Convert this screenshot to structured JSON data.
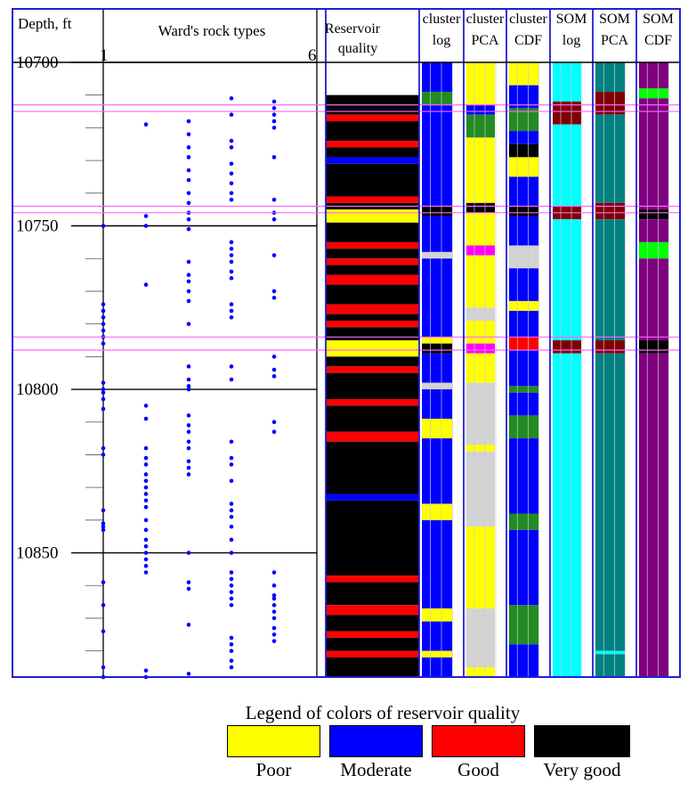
{
  "palette": {
    "poor": "#ffff00",
    "moderate": "#0000ff",
    "good": "#ff0000",
    "very_good": "#000000",
    "grey": "#d3d3d3",
    "cyan": "#00ffff",
    "teal": "#008080",
    "purple": "#800080",
    "maroon": "#800000",
    "green": "#228b22",
    "lime": "#00ff00",
    "magenta": "#ff00ff",
    "frame": "#2020d0",
    "marker_line": "#ff66ff",
    "dot": "#0000ff"
  },
  "chart_data": {
    "type": "well-log",
    "y_axis": {
      "title": "Depth, ft",
      "range": [
        10700,
        10888
      ],
      "ticks": [
        "10700",
        "10750",
        "10800",
        "10850"
      ],
      "tick_values": [
        10700,
        10750,
        10800,
        10850
      ]
    },
    "rock_types": {
      "title": "Ward's rock types",
      "range_min_label": "1",
      "range_max_label": "6",
      "x_range": [
        1,
        6
      ],
      "points": [
        {
          "type": 1,
          "depths": [
            10750,
            10774,
            10776,
            10778,
            10780,
            10782,
            10784,
            10786,
            10798,
            10800,
            10801,
            10803,
            10806,
            10818,
            10820,
            10837,
            10841,
            10842,
            10843,
            10859,
            10866,
            10874,
            10885,
            10888
          ]
        },
        {
          "type": 2,
          "depths": [
            10719,
            10747,
            10750,
            10768,
            10805,
            10809,
            10818,
            10821,
            10823,
            10826,
            10828,
            10830,
            10832,
            10834,
            10836,
            10840,
            10843,
            10846,
            10848,
            10850,
            10852,
            10854,
            10856,
            10886,
            10888
          ]
        },
        {
          "type": 3,
          "depths": [
            10718,
            10722,
            10726,
            10729,
            10733,
            10736,
            10740,
            10743,
            10746,
            10748,
            10751,
            10761,
            10765,
            10767,
            10770,
            10773,
            10780,
            10793,
            10797,
            10799,
            10800,
            10808,
            10811,
            10813,
            10816,
            10818,
            10822,
            10824,
            10826,
            10850,
            10859,
            10861,
            10872,
            10887
          ]
        },
        {
          "type": 4,
          "depths": [
            10711,
            10716,
            10724,
            10726,
            10731,
            10734,
            10737,
            10740,
            10742,
            10755,
            10757,
            10759,
            10761,
            10764,
            10766,
            10774,
            10776,
            10778,
            10793,
            10797,
            10816,
            10821,
            10823,
            10828,
            10835,
            10837,
            10839,
            10842,
            10846,
            10850,
            10856,
            10858,
            10860,
            10862,
            10864,
            10866,
            10876,
            10878,
            10880,
            10883,
            10885
          ]
        },
        {
          "type": 5,
          "depths": [
            10712,
            10714,
            10716,
            10718,
            10720,
            10729,
            10742,
            10746,
            10748,
            10759,
            10770,
            10772,
            10790,
            10794,
            10796,
            10810,
            10813,
            10856,
            10860,
            10863,
            10864,
            10866,
            10868,
            10870,
            10873,
            10875,
            10877
          ]
        }
      ]
    },
    "reservoir_quality": {
      "title": "Reservoir quality",
      "intervals": [
        {
          "top": 10710,
          "base": 10716,
          "class": "very_good"
        },
        {
          "top": 10716,
          "base": 10718,
          "class": "good"
        },
        {
          "top": 10718,
          "base": 10724,
          "class": "very_good"
        },
        {
          "top": 10724,
          "base": 10726,
          "class": "good"
        },
        {
          "top": 10726,
          "base": 10729,
          "class": "very_good"
        },
        {
          "top": 10729,
          "base": 10731,
          "class": "moderate"
        },
        {
          "top": 10731,
          "base": 10741,
          "class": "very_good"
        },
        {
          "top": 10741,
          "base": 10743,
          "class": "good"
        },
        {
          "top": 10743,
          "base": 10745,
          "class": "very_good"
        },
        {
          "top": 10745,
          "base": 10749,
          "class": "poor"
        },
        {
          "top": 10749,
          "base": 10755,
          "class": "very_good"
        },
        {
          "top": 10755,
          "base": 10757,
          "class": "good"
        },
        {
          "top": 10757,
          "base": 10760,
          "class": "very_good"
        },
        {
          "top": 10760,
          "base": 10762,
          "class": "good"
        },
        {
          "top": 10762,
          "base": 10765,
          "class": "very_good"
        },
        {
          "top": 10765,
          "base": 10768,
          "class": "good"
        },
        {
          "top": 10768,
          "base": 10774,
          "class": "very_good"
        },
        {
          "top": 10774,
          "base": 10777,
          "class": "good"
        },
        {
          "top": 10777,
          "base": 10779,
          "class": "very_good"
        },
        {
          "top": 10779,
          "base": 10781,
          "class": "good"
        },
        {
          "top": 10781,
          "base": 10785,
          "class": "very_good"
        },
        {
          "top": 10785,
          "base": 10790,
          "class": "poor"
        },
        {
          "top": 10790,
          "base": 10793,
          "class": "very_good"
        },
        {
          "top": 10793,
          "base": 10795,
          "class": "good"
        },
        {
          "top": 10795,
          "base": 10803,
          "class": "very_good"
        },
        {
          "top": 10803,
          "base": 10805,
          "class": "good"
        },
        {
          "top": 10805,
          "base": 10813,
          "class": "very_good"
        },
        {
          "top": 10813,
          "base": 10816,
          "class": "good"
        },
        {
          "top": 10816,
          "base": 10832,
          "class": "very_good"
        },
        {
          "top": 10832,
          "base": 10834,
          "class": "moderate"
        },
        {
          "top": 10834,
          "base": 10857,
          "class": "very_good"
        },
        {
          "top": 10857,
          "base": 10859,
          "class": "good"
        },
        {
          "top": 10859,
          "base": 10866,
          "class": "very_good"
        },
        {
          "top": 10866,
          "base": 10869,
          "class": "good"
        },
        {
          "top": 10869,
          "base": 10874,
          "class": "very_good"
        },
        {
          "top": 10874,
          "base": 10876,
          "class": "good"
        },
        {
          "top": 10876,
          "base": 10880,
          "class": "very_good"
        },
        {
          "top": 10880,
          "base": 10882,
          "class": "good"
        },
        {
          "top": 10882,
          "base": 10888,
          "class": "very_good"
        }
      ]
    },
    "class_tracks": [
      {
        "title_line1": "cluster",
        "title_line2": "log",
        "intervals": [
          {
            "top": 10700,
            "base": 10709,
            "class": "moderate"
          },
          {
            "top": 10709,
            "base": 10713,
            "class": "green"
          },
          {
            "top": 10713,
            "base": 10744,
            "class": "moderate"
          },
          {
            "top": 10744,
            "base": 10747,
            "class": "very_good"
          },
          {
            "top": 10747,
            "base": 10758,
            "class": "moderate"
          },
          {
            "top": 10758,
            "base": 10760,
            "class": "grey"
          },
          {
            "top": 10760,
            "base": 10784,
            "class": "moderate"
          },
          {
            "top": 10784,
            "base": 10786,
            "class": "poor"
          },
          {
            "top": 10786,
            "base": 10789,
            "class": "very_good"
          },
          {
            "top": 10789,
            "base": 10798,
            "class": "moderate"
          },
          {
            "top": 10798,
            "base": 10800,
            "class": "grey"
          },
          {
            "top": 10800,
            "base": 10809,
            "class": "moderate"
          },
          {
            "top": 10809,
            "base": 10815,
            "class": "poor"
          },
          {
            "top": 10815,
            "base": 10835,
            "class": "moderate"
          },
          {
            "top": 10835,
            "base": 10840,
            "class": "poor"
          },
          {
            "top": 10840,
            "base": 10867,
            "class": "moderate"
          },
          {
            "top": 10867,
            "base": 10871,
            "class": "poor"
          },
          {
            "top": 10871,
            "base": 10880,
            "class": "moderate"
          },
          {
            "top": 10880,
            "base": 10882,
            "class": "poor"
          },
          {
            "top": 10882,
            "base": 10888,
            "class": "moderate"
          }
        ]
      },
      {
        "title_line1": "cluster",
        "title_line2": "PCA",
        "intervals": [
          {
            "top": 10700,
            "base": 10713,
            "class": "poor"
          },
          {
            "top": 10713,
            "base": 10716,
            "class": "moderate"
          },
          {
            "top": 10716,
            "base": 10723,
            "class": "green"
          },
          {
            "top": 10723,
            "base": 10743,
            "class": "poor"
          },
          {
            "top": 10743,
            "base": 10746,
            "class": "very_good"
          },
          {
            "top": 10746,
            "base": 10756,
            "class": "poor"
          },
          {
            "top": 10756,
            "base": 10759,
            "class": "magenta"
          },
          {
            "top": 10759,
            "base": 10775,
            "class": "poor"
          },
          {
            "top": 10775,
            "base": 10779,
            "class": "grey"
          },
          {
            "top": 10779,
            "base": 10786,
            "class": "poor"
          },
          {
            "top": 10786,
            "base": 10789,
            "class": "magenta"
          },
          {
            "top": 10789,
            "base": 10798,
            "class": "poor"
          },
          {
            "top": 10798,
            "base": 10817,
            "class": "grey"
          },
          {
            "top": 10817,
            "base": 10819,
            "class": "poor"
          },
          {
            "top": 10819,
            "base": 10842,
            "class": "grey"
          },
          {
            "top": 10842,
            "base": 10867,
            "class": "poor"
          },
          {
            "top": 10867,
            "base": 10885,
            "class": "grey"
          },
          {
            "top": 10885,
            "base": 10888,
            "class": "poor"
          }
        ]
      },
      {
        "title_line1": "cluster",
        "title_line2": "CDF",
        "intervals": [
          {
            "top": 10700,
            "base": 10707,
            "class": "poor"
          },
          {
            "top": 10707,
            "base": 10714,
            "class": "moderate"
          },
          {
            "top": 10714,
            "base": 10721,
            "class": "green"
          },
          {
            "top": 10721,
            "base": 10725,
            "class": "moderate"
          },
          {
            "top": 10725,
            "base": 10729,
            "class": "very_good"
          },
          {
            "top": 10729,
            "base": 10735,
            "class": "poor"
          },
          {
            "top": 10735,
            "base": 10744,
            "class": "moderate"
          },
          {
            "top": 10744,
            "base": 10747,
            "class": "very_good"
          },
          {
            "top": 10747,
            "base": 10756,
            "class": "moderate"
          },
          {
            "top": 10756,
            "base": 10763,
            "class": "grey"
          },
          {
            "top": 10763,
            "base": 10773,
            "class": "moderate"
          },
          {
            "top": 10773,
            "base": 10776,
            "class": "poor"
          },
          {
            "top": 10776,
            "base": 10784,
            "class": "moderate"
          },
          {
            "top": 10784,
            "base": 10788,
            "class": "good"
          },
          {
            "top": 10788,
            "base": 10799,
            "class": "moderate"
          },
          {
            "top": 10799,
            "base": 10801,
            "class": "green"
          },
          {
            "top": 10801,
            "base": 10808,
            "class": "moderate"
          },
          {
            "top": 10808,
            "base": 10815,
            "class": "green"
          },
          {
            "top": 10815,
            "base": 10838,
            "class": "moderate"
          },
          {
            "top": 10838,
            "base": 10843,
            "class": "green"
          },
          {
            "top": 10843,
            "base": 10866,
            "class": "moderate"
          },
          {
            "top": 10866,
            "base": 10878,
            "class": "green"
          },
          {
            "top": 10878,
            "base": 10888,
            "class": "moderate"
          }
        ]
      },
      {
        "title_line1": "SOM",
        "title_line2": "log",
        "intervals": [
          {
            "top": 10700,
            "base": 10712,
            "class": "cyan"
          },
          {
            "top": 10712,
            "base": 10719,
            "class": "maroon"
          },
          {
            "top": 10719,
            "base": 10744,
            "class": "cyan"
          },
          {
            "top": 10744,
            "base": 10748,
            "class": "maroon"
          },
          {
            "top": 10748,
            "base": 10785,
            "class": "cyan"
          },
          {
            "top": 10785,
            "base": 10789,
            "class": "maroon"
          },
          {
            "top": 10789,
            "base": 10888,
            "class": "cyan"
          }
        ]
      },
      {
        "title_line1": "SOM",
        "title_line2": "PCA",
        "intervals": [
          {
            "top": 10700,
            "base": 10709,
            "class": "teal"
          },
          {
            "top": 10709,
            "base": 10716,
            "class": "maroon"
          },
          {
            "top": 10716,
            "base": 10743,
            "class": "teal"
          },
          {
            "top": 10743,
            "base": 10748,
            "class": "maroon"
          },
          {
            "top": 10748,
            "base": 10785,
            "class": "teal"
          },
          {
            "top": 10785,
            "base": 10789,
            "class": "maroon"
          },
          {
            "top": 10789,
            "base": 10880,
            "class": "teal"
          },
          {
            "top": 10880,
            "base": 10881,
            "class": "cyan"
          },
          {
            "top": 10881,
            "base": 10888,
            "class": "teal"
          }
        ]
      },
      {
        "title_line1": "SOM",
        "title_line2": "CDF",
        "intervals": [
          {
            "top": 10700,
            "base": 10708,
            "class": "purple"
          },
          {
            "top": 10708,
            "base": 10711,
            "class": "lime"
          },
          {
            "top": 10711,
            "base": 10745,
            "class": "purple"
          },
          {
            "top": 10745,
            "base": 10748,
            "class": "very_good"
          },
          {
            "top": 10748,
            "base": 10755,
            "class": "purple"
          },
          {
            "top": 10755,
            "base": 10760,
            "class": "lime"
          },
          {
            "top": 10760,
            "base": 10785,
            "class": "purple"
          },
          {
            "top": 10785,
            "base": 10789,
            "class": "very_good"
          },
          {
            "top": 10789,
            "base": 10888,
            "class": "purple"
          }
        ]
      }
    ],
    "marker_depths": [
      10713,
      10715,
      10744,
      10746,
      10784,
      10788
    ]
  },
  "legend": {
    "title": "Legend of colors of reservoir quality",
    "items": [
      {
        "label": "Poor",
        "class": "poor"
      },
      {
        "label": "Moderate",
        "class": "moderate"
      },
      {
        "label": "Good",
        "class": "good"
      },
      {
        "label": "Very good",
        "class": "very_good"
      }
    ]
  }
}
